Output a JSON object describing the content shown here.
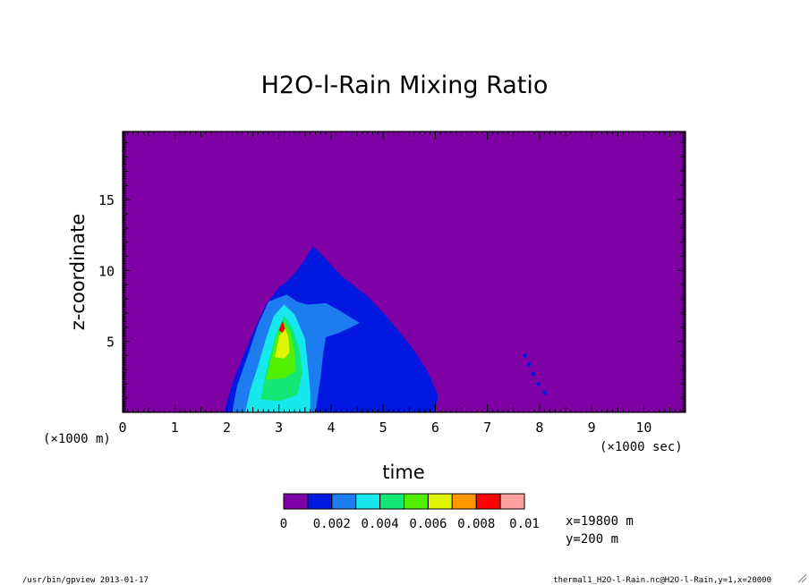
{
  "chart_data": {
    "type": "heatmap",
    "title": "H2O-l-Rain Mixing Ratio",
    "xlabel": "time",
    "ylabel": "z-coordinate",
    "xlim": [
      0,
      10.8
    ],
    "ylim": [
      0,
      19.8
    ],
    "x_ticks": [
      "0",
      "1",
      "2",
      "3",
      "4",
      "5",
      "6",
      "7",
      "8",
      "9",
      "10"
    ],
    "y_ticks": [
      "5",
      "10",
      "15"
    ],
    "x_unit": "(×1000 sec)",
    "y_unit": "(×1000 m)",
    "colorbar": {
      "colors": [
        "#7f00a5",
        "#0018e0",
        "#1c7cf0",
        "#17e8ee",
        "#12e875",
        "#52f000",
        "#e0f600",
        "#ff9800",
        "#ff0000",
        "#ffa0a0"
      ],
      "labels": [
        "0",
        "0.002",
        "0.004",
        "0.006",
        "0.008",
        "0.01"
      ],
      "label_levels": [
        0,
        2,
        4,
        6,
        8,
        10
      ]
    },
    "background_color": "#7f00a5",
    "regions": [
      {
        "level": 1,
        "points": [
          [
            1.95,
            0
          ],
          [
            2.1,
            2.0
          ],
          [
            2.35,
            4.3
          ],
          [
            2.55,
            6.0
          ],
          [
            2.75,
            7.6
          ],
          [
            3.0,
            8.8
          ],
          [
            3.2,
            9.4
          ],
          [
            3.35,
            10.0
          ],
          [
            3.5,
            10.8
          ],
          [
            3.65,
            11.7
          ],
          [
            3.8,
            11.2
          ],
          [
            4.2,
            9.6
          ],
          [
            4.7,
            8.2
          ],
          [
            5.1,
            6.6
          ],
          [
            5.55,
            4.6
          ],
          [
            5.85,
            2.9
          ],
          [
            6.05,
            1.2
          ],
          [
            6.0,
            0
          ]
        ]
      },
      {
        "level": 2,
        "points": [
          [
            2.1,
            0
          ],
          [
            2.2,
            1.9
          ],
          [
            2.4,
            4.0
          ],
          [
            2.6,
            6.2
          ],
          [
            2.8,
            7.8
          ],
          [
            3.0,
            8.1
          ],
          [
            3.15,
            8.3
          ],
          [
            3.35,
            7.8
          ],
          [
            3.55,
            7.6
          ],
          [
            3.9,
            7.7
          ],
          [
            4.15,
            7.2
          ],
          [
            4.55,
            6.3
          ],
          [
            4.15,
            5.6
          ],
          [
            3.9,
            5.3
          ],
          [
            3.85,
            4.2
          ],
          [
            3.8,
            2.5
          ],
          [
            3.7,
            0
          ]
        ]
      },
      {
        "level": 3,
        "points": [
          [
            2.35,
            0
          ],
          [
            2.45,
            1.6
          ],
          [
            2.6,
            3.3
          ],
          [
            2.75,
            5.2
          ],
          [
            2.9,
            6.8
          ],
          [
            3.1,
            7.6
          ],
          [
            3.3,
            6.9
          ],
          [
            3.5,
            5.2
          ],
          [
            3.55,
            3.4
          ],
          [
            3.6,
            1.5
          ],
          [
            3.6,
            0
          ]
        ]
      },
      {
        "level": 4,
        "points": [
          [
            2.65,
            0.9
          ],
          [
            2.72,
            2.3
          ],
          [
            2.82,
            3.9
          ],
          [
            2.95,
            5.6
          ],
          [
            3.1,
            6.8
          ],
          [
            3.25,
            6.0
          ],
          [
            3.38,
            4.6
          ],
          [
            3.45,
            2.8
          ],
          [
            3.35,
            1.2
          ],
          [
            3.0,
            0.8
          ]
        ]
      },
      {
        "level": 5,
        "points": [
          [
            2.75,
            2.3
          ],
          [
            2.85,
            3.8
          ],
          [
            2.95,
            5.3
          ],
          [
            3.1,
            6.4
          ],
          [
            3.22,
            5.7
          ],
          [
            3.3,
            4.3
          ],
          [
            3.32,
            2.9
          ],
          [
            3.1,
            2.4
          ]
        ]
      },
      {
        "level": 6,
        "points": [
          [
            2.92,
            3.9
          ],
          [
            3.0,
            5.3
          ],
          [
            3.1,
            6.1
          ],
          [
            3.18,
            5.3
          ],
          [
            3.2,
            4.2
          ],
          [
            3.1,
            3.8
          ]
        ]
      },
      {
        "level": 8,
        "points": [
          [
            3.0,
            5.8
          ],
          [
            3.07,
            6.45
          ],
          [
            3.12,
            5.9
          ],
          [
            3.06,
            5.6
          ]
        ]
      }
    ],
    "dots": [
      [
        7.72,
        4.0
      ],
      [
        7.8,
        3.4
      ],
      [
        7.88,
        2.7
      ],
      [
        7.98,
        2.0
      ],
      [
        8.1,
        1.4
      ]
    ]
  },
  "annotations": {
    "coord_x": "x=19800 m",
    "coord_y": "y=200 m"
  },
  "footer": {
    "left": "/usr/bin/gpview  2013-01-17",
    "right": "thermal1_H2O-l-Rain.nc@H2O-l-Rain,y=1,x=20000"
  }
}
